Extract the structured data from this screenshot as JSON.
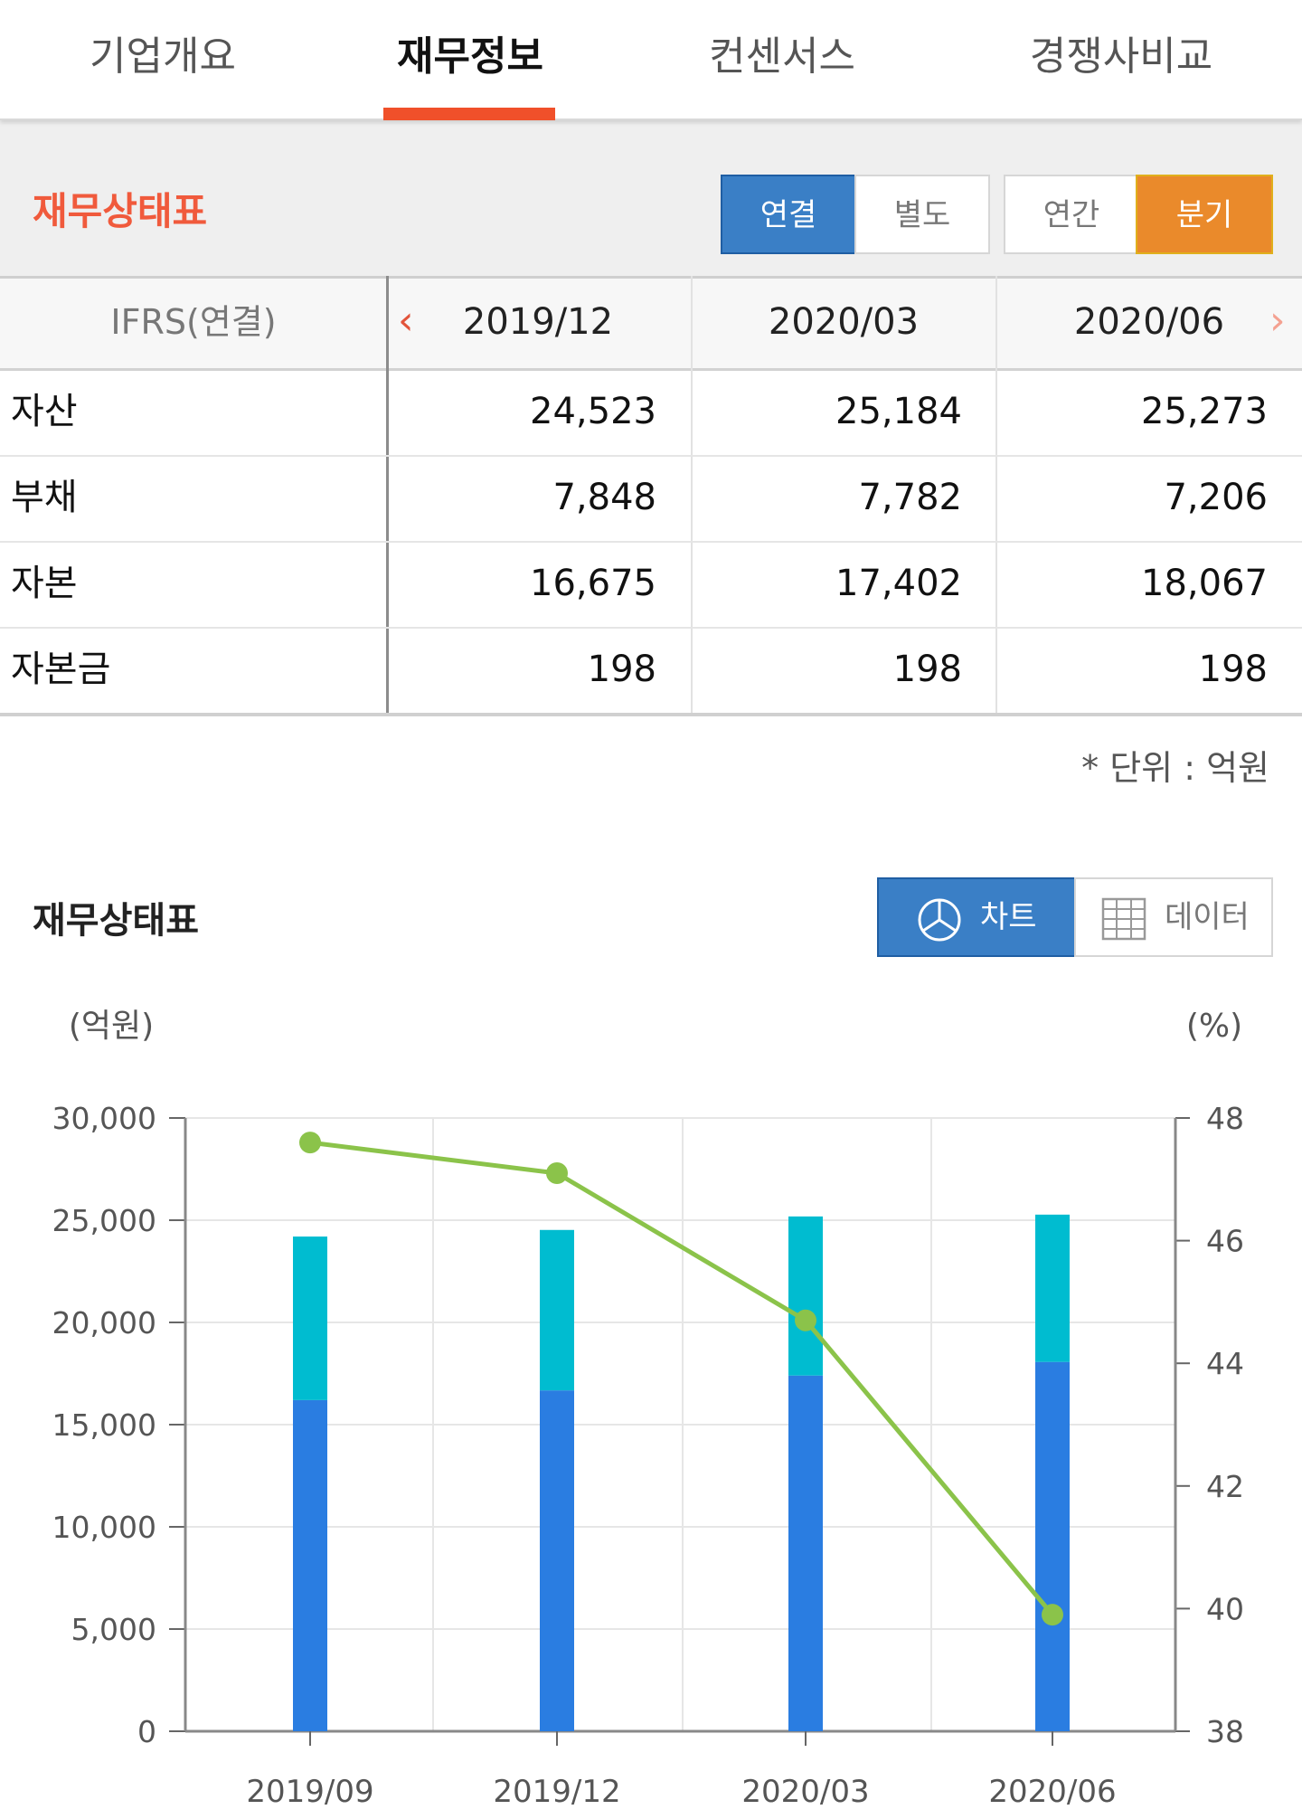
{
  "tabs": [
    {
      "label": "기업개요"
    },
    {
      "label": "재무정보"
    },
    {
      "label": "컨센서스"
    },
    {
      "label": "경쟁사비교"
    }
  ],
  "section1": {
    "title": "재무상태표",
    "scope_buttons": [
      "연결",
      "별도"
    ],
    "period_buttons": [
      "연간",
      "분기"
    ],
    "table": {
      "header_label": "IFRS(연결)",
      "periods": [
        "2019/12",
        "2020/03",
        "2020/06"
      ],
      "rows": [
        {
          "label": "자산",
          "values": [
            "24,523",
            "25,184",
            "25,273"
          ]
        },
        {
          "label": "부채",
          "values": [
            "7,848",
            "7,782",
            "7,206"
          ]
        },
        {
          "label": "자본",
          "values": [
            "16,675",
            "17,402",
            "18,067"
          ]
        },
        {
          "label": "자본금",
          "values": [
            "198",
            "198",
            "198"
          ]
        }
      ]
    },
    "unit_note": "* 단위 : 억원"
  },
  "section2": {
    "title": "재무상태표",
    "view_buttons": {
      "chart": "차트",
      "data": "데이터"
    }
  },
  "chart_data": {
    "type": "bar",
    "categories": [
      "2019/09",
      "2019/12",
      "2020/03",
      "2020/06"
    ],
    "series": [
      {
        "values": [
          16200,
          16675,
          17402,
          18067
        ],
        "color": "#2a7de1"
      },
      {
        "values": [
          8000,
          7848,
          7782,
          7206
        ],
        "color": "#00bcd0"
      },
      {
        "type": "line",
        "axis": "right",
        "values": [
          47.6,
          47.1,
          44.7,
          39.9
        ],
        "color": "#8bc34a"
      }
    ],
    "stacked": true,
    "yleft_unit": "(억원)",
    "yright_unit": "(%)",
    "yleft_lim": [
      0,
      30000
    ],
    "yleft_ticks": [
      "0",
      "5,000",
      "10,000",
      "15,000",
      "20,000",
      "25,000",
      "30,000"
    ],
    "yright_lim": [
      38,
      48
    ],
    "yright_ticks": [
      "38",
      "40",
      "42",
      "44",
      "46",
      "48"
    ],
    "grid": true
  }
}
